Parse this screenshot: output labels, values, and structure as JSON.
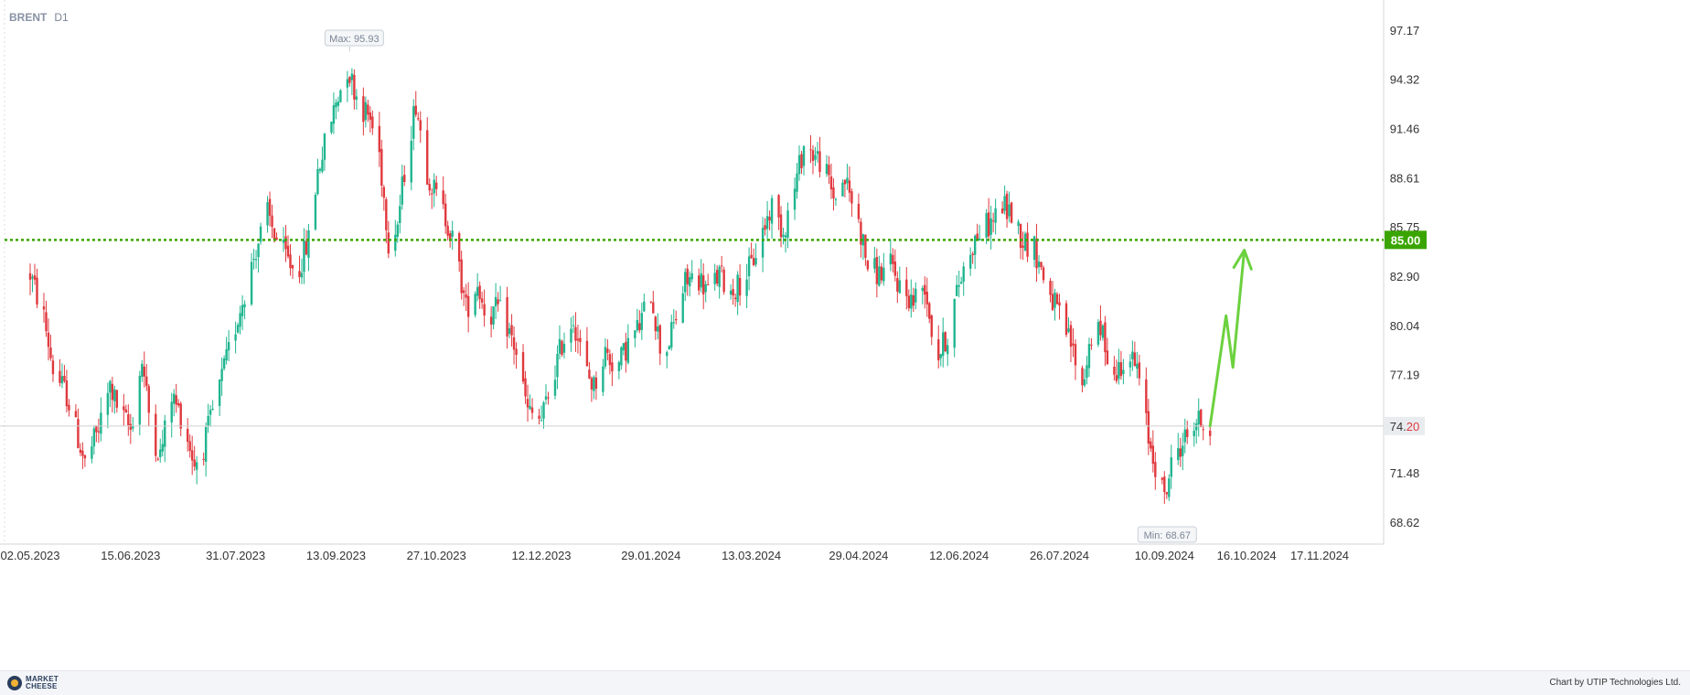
{
  "header": {
    "symbol": "BRENT",
    "timeframe": "D1"
  },
  "footer": {
    "logo_line1": "MARKET",
    "logo_line2": "CHEESE",
    "credit": "Chart by UTIP Technologies Ltd."
  },
  "colors": {
    "up": "#1fb58f",
    "down": "#e0393e",
    "level": "#3aa500",
    "arrow": "#6cd13e",
    "grid": "#e8e8e8"
  },
  "chart_data": {
    "type": "candlestick",
    "y_ticks": [
      "97.17",
      "94.32",
      "91.46",
      "88.61",
      "85.75",
      "82.90",
      "80.04",
      "77.19",
      "71.48",
      "68.62"
    ],
    "ylim": [
      66.9,
      98.5
    ],
    "x_ticks": [
      "02.05.2023",
      "15.06.2023",
      "31.07.2023",
      "13.09.2023",
      "27.10.2023",
      "12.12.2023",
      "29.01.2024",
      "13.03.2024",
      "29.04.2024",
      "12.06.2024",
      "26.07.2024",
      "10.09.2024",
      "16.10.2024",
      "17.11.2024"
    ],
    "max_label": "Max: 95.93",
    "max_value": 95.93,
    "max_date": "19.09.2023",
    "min_label": "Min: 68.67",
    "min_value": 68.67,
    "min_date": "10.09.2024",
    "level": {
      "value": 85.0,
      "label": "85.00"
    },
    "last_price": {
      "value": 74.2,
      "label_main": "74.",
      "label_tail": "20"
    },
    "forecast_path": [
      {
        "date": "30.09.2024",
        "price": 74.2
      },
      {
        "date": "07.10.2024",
        "price": 80.6
      },
      {
        "date": "10.10.2024",
        "price": 77.6
      },
      {
        "date": "15.10.2024",
        "price": 84.4
      }
    ],
    "closes": [
      [
        "02.05.2023",
        83.0
      ],
      [
        "08.05.2023",
        80.5
      ],
      [
        "12.05.2023",
        77.5
      ],
      [
        "18.05.2023",
        76.0
      ],
      [
        "23.05.2023",
        73.5
      ],
      [
        "26.05.2023",
        72.0
      ],
      [
        "01.06.2023",
        74.0
      ],
      [
        "06.06.2023",
        76.5
      ],
      [
        "10.06.2023",
        75.0
      ],
      [
        "15.06.2023",
        74.0
      ],
      [
        "20.06.2023",
        78.0
      ],
      [
        "24.06.2023",
        74.0
      ],
      [
        "28.06.2023",
        72.5
      ],
      [
        "03.07.2023",
        76.0
      ],
      [
        "08.07.2023",
        74.5
      ],
      [
        "13.07.2023",
        72.0
      ],
      [
        "17.07.2023",
        73.0
      ],
      [
        "22.07.2023",
        75.5
      ],
      [
        "26.07.2023",
        77.5
      ],
      [
        "31.07.2023",
        80.0
      ],
      [
        "04.08.2023",
        82.0
      ],
      [
        "09.08.2023",
        84.5
      ],
      [
        "14.08.2023",
        86.5
      ],
      [
        "18.08.2023",
        85.0
      ],
      [
        "22.08.2023",
        84.0
      ],
      [
        "27.08.2023",
        83.0
      ],
      [
        "01.09.2023",
        85.0
      ],
      [
        "05.09.2023",
        89.0
      ],
      [
        "09.09.2023",
        91.0
      ],
      [
        "13.09.2023",
        93.0
      ],
      [
        "18.09.2023",
        95.0
      ],
      [
        "23.09.2023",
        93.0
      ],
      [
        "28.09.2023",
        92.0
      ],
      [
        "02.10.2023",
        90.0
      ],
      [
        "06.10.2023",
        85.0
      ],
      [
        "10.10.2023",
        86.0
      ],
      [
        "14.10.2023",
        90.0
      ],
      [
        "18.10.2023",
        93.0
      ],
      [
        "23.10.2023",
        89.0
      ],
      [
        "27.10.2023",
        87.5
      ],
      [
        "01.11.2023",
        86.0
      ],
      [
        "05.11.2023",
        84.0
      ],
      [
        "09.11.2023",
        81.0
      ],
      [
        "14.11.2023",
        82.5
      ],
      [
        "18.11.2023",
        80.5
      ],
      [
        "23.11.2023",
        81.0
      ],
      [
        "27.11.2023",
        80.0
      ],
      [
        "01.12.2023",
        78.5
      ],
      [
        "06.12.2023",
        75.0
      ],
      [
        "12.12.2023",
        74.5
      ],
      [
        "17.12.2023",
        77.0
      ],
      [
        "21.12.2023",
        79.0
      ],
      [
        "26.12.2023",
        80.5
      ],
      [
        "31.12.2023",
        77.5
      ],
      [
        "04.01.2024",
        76.5
      ],
      [
        "09.01.2024",
        78.5
      ],
      [
        "14.01.2024",
        77.5
      ],
      [
        "19.01.2024",
        79.0
      ],
      [
        "24.01.2024",
        80.0
      ],
      [
        "29.01.2024",
        82.0
      ],
      [
        "03.02.2024",
        78.0
      ],
      [
        "08.02.2024",
        80.0
      ],
      [
        "13.02.2024",
        82.5
      ],
      [
        "18.02.2024",
        83.0
      ],
      [
        "23.02.2024",
        82.0
      ],
      [
        "28.02.2024",
        83.0
      ],
      [
        "04.03.2024",
        82.0
      ],
      [
        "08.03.2024",
        82.5
      ],
      [
        "13.03.2024",
        83.5
      ],
      [
        "18.03.2024",
        85.5
      ],
      [
        "22.03.2024",
        87.0
      ],
      [
        "27.03.2024",
        85.5
      ],
      [
        "01.04.2024",
        88.0
      ],
      [
        "05.04.2024",
        90.5
      ],
      [
        "09.04.2024",
        90.0
      ],
      [
        "13.04.2024",
        89.5
      ],
      [
        "18.04.2024",
        87.5
      ],
      [
        "23.04.2024",
        88.5
      ],
      [
        "29.04.2024",
        86.0
      ],
      [
        "03.05.2024",
        83.5
      ],
      [
        "08.05.2024",
        83.0
      ],
      [
        "13.05.2024",
        83.5
      ],
      [
        "18.05.2024",
        82.0
      ],
      [
        "23.05.2024",
        81.5
      ],
      [
        "28.05.2024",
        82.5
      ],
      [
        "02.06.2024",
        78.0
      ],
      [
        "07.06.2024",
        79.5
      ],
      [
        "12.06.2024",
        82.5
      ],
      [
        "17.06.2024",
        84.5
      ],
      [
        "21.06.2024",
        85.5
      ],
      [
        "26.06.2024",
        86.0
      ],
      [
        "01.07.2024",
        87.0
      ],
      [
        "05.07.2024",
        86.5
      ],
      [
        "10.07.2024",
        85.0
      ],
      [
        "15.07.2024",
        84.5
      ],
      [
        "20.07.2024",
        82.5
      ],
      [
        "26.07.2024",
        80.5
      ],
      [
        "31.07.2024",
        79.0
      ],
      [
        "05.08.2024",
        76.5
      ],
      [
        "09.08.2024",
        79.5
      ],
      [
        "14.08.2024",
        79.5
      ],
      [
        "19.08.2024",
        77.0
      ],
      [
        "24.08.2024",
        78.5
      ],
      [
        "29.08.2024",
        77.5
      ],
      [
        "03.09.2024",
        73.5
      ],
      [
        "07.09.2024",
        71.5
      ],
      [
        "10.09.2024",
        70.0
      ],
      [
        "14.09.2024",
        72.5
      ],
      [
        "19.09.2024",
        73.5
      ],
      [
        "24.09.2024",
        74.5
      ],
      [
        "30.09.2024",
        74.2
      ]
    ]
  }
}
